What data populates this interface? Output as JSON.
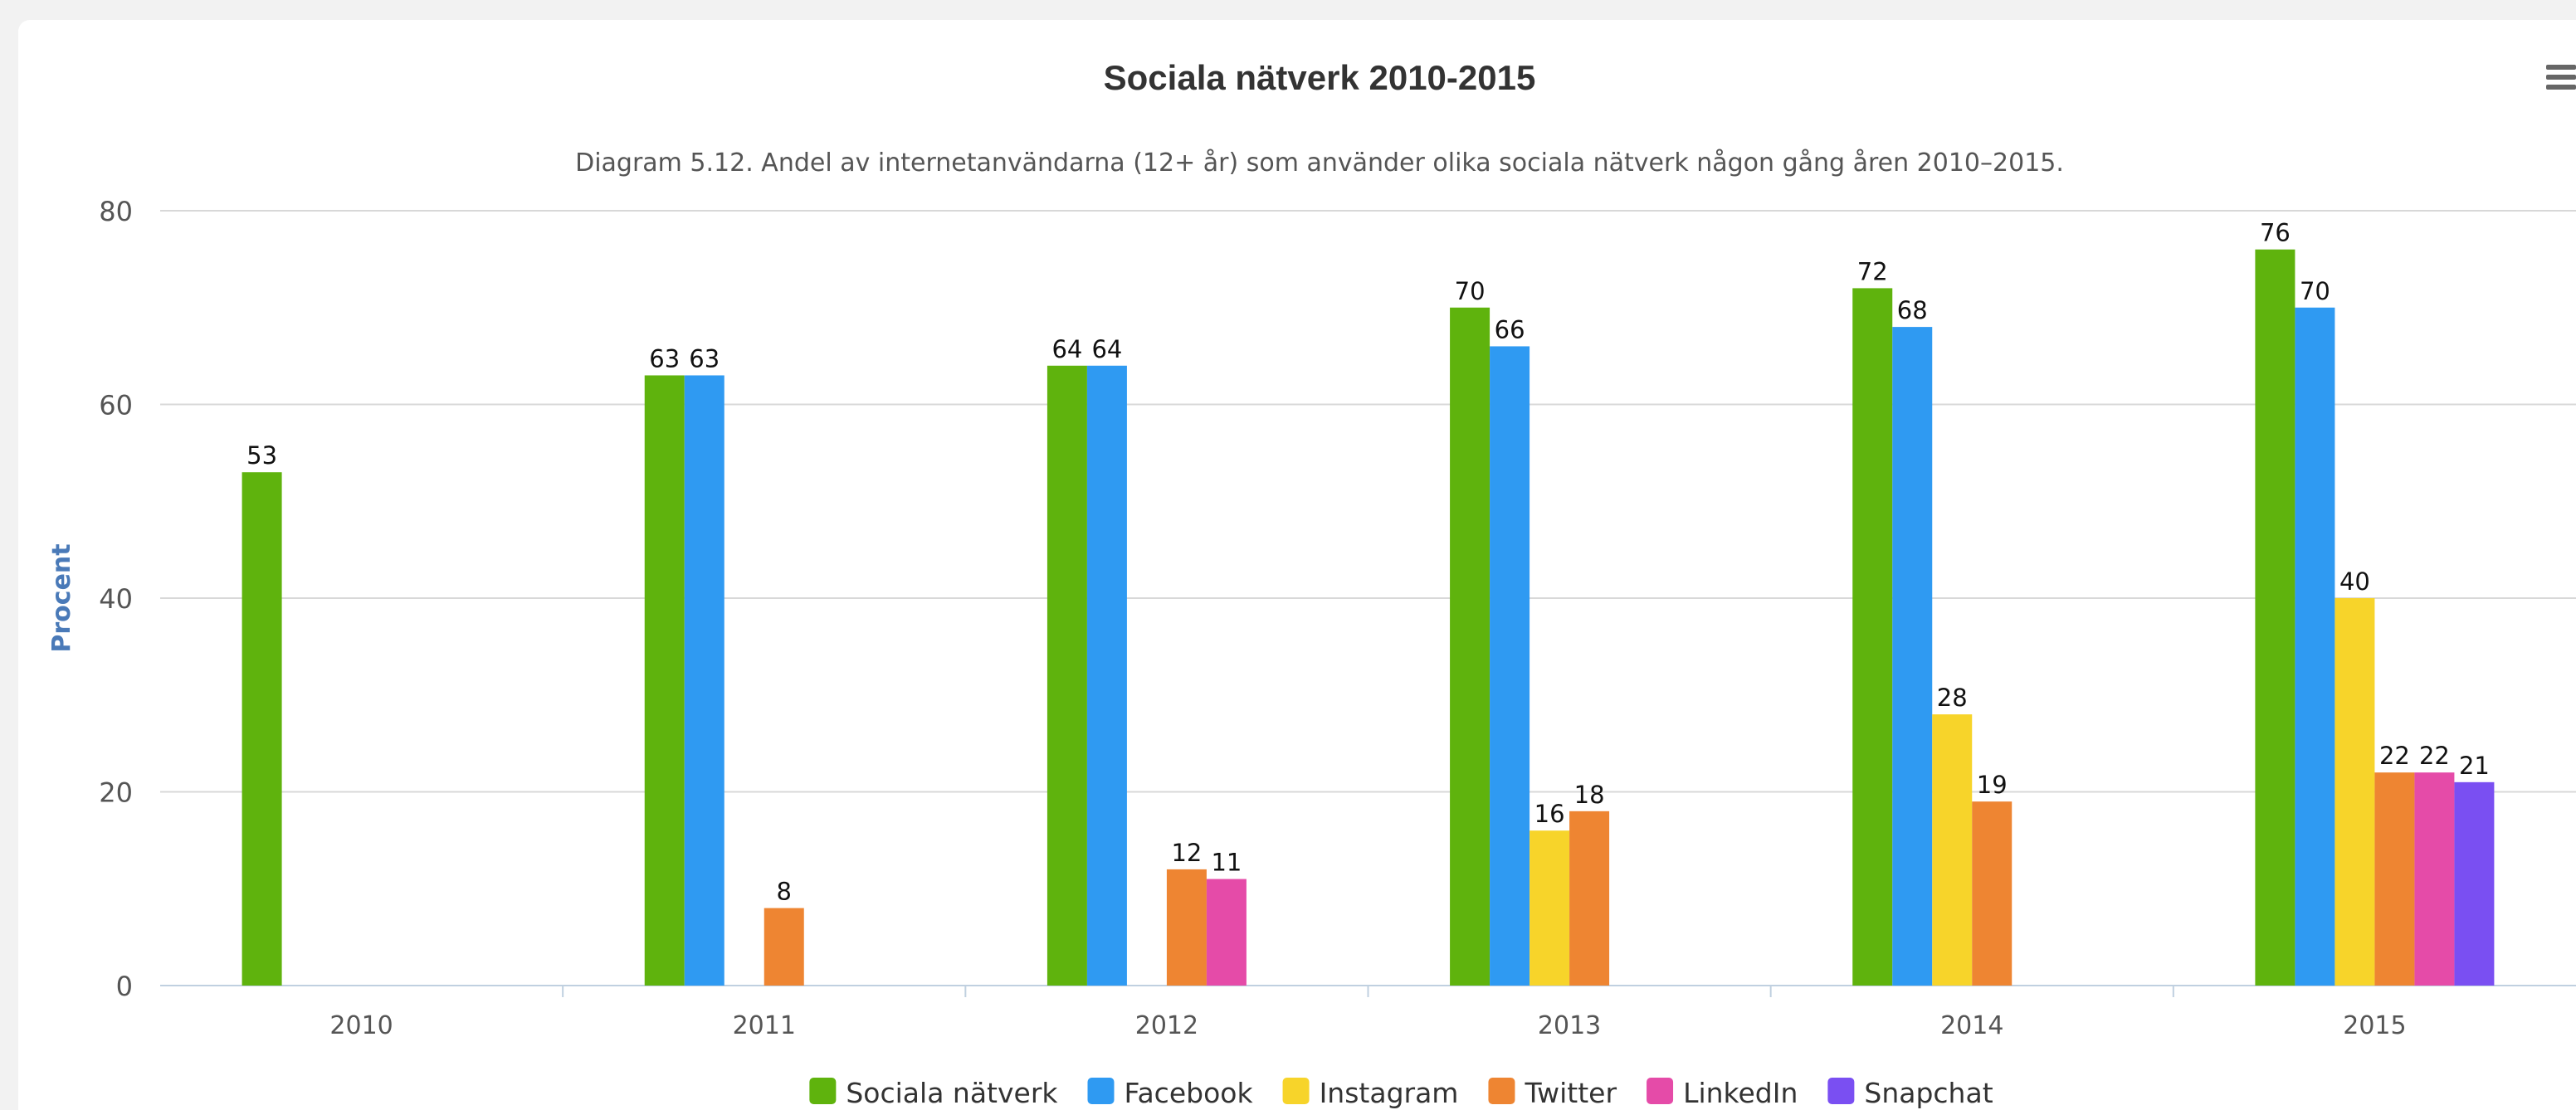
{
  "menu_icon": "hamburger-menu-icon",
  "chart_data": {
    "type": "bar",
    "title": "Sociala nätverk 2010-2015",
    "subtitle": "Diagram 5.12. Andel av internetanvändarna (12+ år) som använder olika sociala nätverk någon gång åren 2010–2015.",
    "xlabel": "",
    "ylabel": "Procent",
    "ylim": [
      0,
      80
    ],
    "yticks": [
      "0",
      "20",
      "40",
      "60",
      "80"
    ],
    "grid": true,
    "legend_position": "bottom-center",
    "categories": [
      "2010",
      "2011",
      "2012",
      "2013",
      "2014",
      "2015"
    ],
    "series": [
      {
        "name": "Sociala nätverk",
        "color": "#5fb30d",
        "values": [
          53,
          63,
          64,
          70,
          72,
          76
        ]
      },
      {
        "name": "Facebook",
        "color": "#2f9af2",
        "values": [
          null,
          63,
          64,
          66,
          68,
          70
        ]
      },
      {
        "name": "Instagram",
        "color": "#f7d42a",
        "values": [
          null,
          null,
          null,
          16,
          28,
          40
        ]
      },
      {
        "name": "Twitter",
        "color": "#ee8532",
        "values": [
          null,
          8,
          12,
          18,
          19,
          22
        ]
      },
      {
        "name": "LinkedIn",
        "color": "#e54ba8",
        "values": [
          null,
          null,
          11,
          null,
          null,
          22
        ]
      },
      {
        "name": "Snapchat",
        "color": "#7a4ff2",
        "values": [
          null,
          null,
          null,
          null,
          null,
          21
        ]
      }
    ]
  }
}
